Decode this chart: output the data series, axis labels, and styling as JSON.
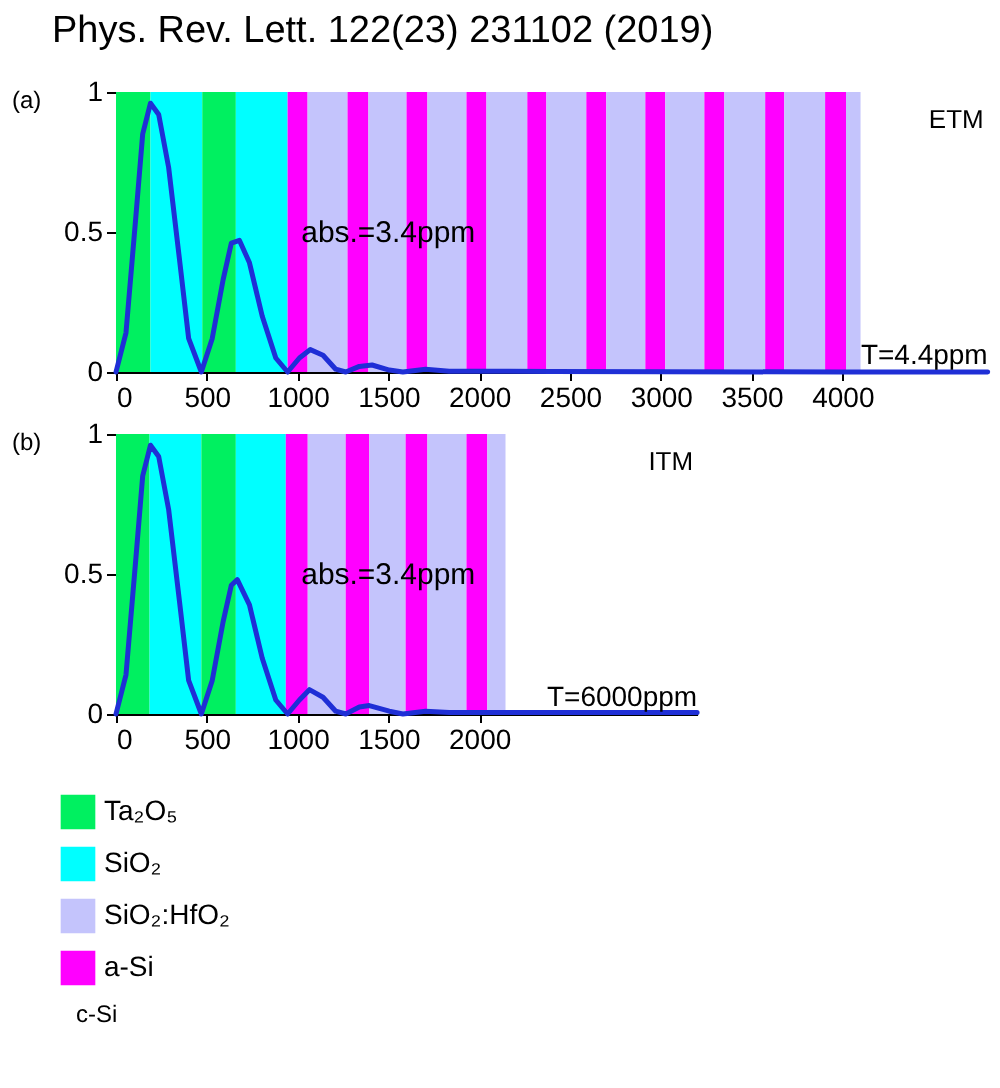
{
  "chart_data": [
    {
      "type": "line",
      "title": "Phys. Rev. Lett. 122(23) 231102 (2019)",
      "annotations": [
        "(a)",
        "ETM",
        "abs.=3.4ppm",
        "T=4.4ppm"
      ],
      "x": [
        0,
        55,
        110,
        147,
        190,
        235,
        290,
        350,
        400,
        470,
        530,
        590,
        635,
        680,
        735,
        805,
        880,
        945,
        1010,
        1070,
        1140,
        1210,
        1265,
        1340,
        1410,
        1505,
        1580,
        1705,
        1835,
        2000,
        2400,
        3000,
        4000,
        4800
      ],
      "series": [
        {
          "color": "#1f2fd6",
          "values": [
            0,
            0.14,
            0.56,
            0.85,
            0.96,
            0.92,
            0.73,
            0.4,
            0.12,
            0,
            0.12,
            0.33,
            0.46,
            0.47,
            0.39,
            0.2,
            0.05,
            0,
            0.05,
            0.08,
            0.06,
            0.01,
            0,
            0.02,
            0.025,
            0.007,
            0,
            0.01,
            0.003,
            0.003,
            0.002,
            0.001,
            0,
            0
          ]
        }
      ],
      "xlim": [
        0,
        4800
      ],
      "xticks": [
        0,
        500,
        1000,
        1500,
        2000,
        2500,
        3000,
        3500,
        4000
      ],
      "ylim": [
        0,
        1
      ],
      "yticks": [
        0,
        0.5,
        1
      ],
      "grid": false,
      "bands": [
        {
          "axis": "x",
          "from": 0,
          "to": 190,
          "color": "#00f060"
        },
        {
          "axis": "x",
          "from": 190,
          "to": 475,
          "color": "#00ffff"
        },
        {
          "axis": "x",
          "from": 475,
          "to": 660,
          "color": "#00f060"
        },
        {
          "axis": "x",
          "from": 660,
          "to": 945,
          "color": "#00ffff"
        },
        {
          "axis": "x",
          "from": 945,
          "to": 1055,
          "color": "#ff00ff"
        },
        {
          "axis": "x",
          "from": 1055,
          "to": 1275,
          "color": "#c4c4fc"
        },
        {
          "axis": "x",
          "from": 1275,
          "to": 1390,
          "color": "#ff00ff"
        },
        {
          "axis": "x",
          "from": 1390,
          "to": 1600,
          "color": "#c4c4fc"
        },
        {
          "axis": "x",
          "from": 1600,
          "to": 1715,
          "color": "#ff00ff"
        },
        {
          "axis": "x",
          "from": 1715,
          "to": 1930,
          "color": "#c4c4fc"
        },
        {
          "axis": "x",
          "from": 1930,
          "to": 2040,
          "color": "#ff00ff"
        },
        {
          "axis": "x",
          "from": 2040,
          "to": 2265,
          "color": "#c4c4fc"
        },
        {
          "axis": "x",
          "from": 2265,
          "to": 2370,
          "color": "#ff00ff"
        },
        {
          "axis": "x",
          "from": 2370,
          "to": 2590,
          "color": "#c4c4fc"
        },
        {
          "axis": "x",
          "from": 2590,
          "to": 2700,
          "color": "#ff00ff"
        },
        {
          "axis": "x",
          "from": 2700,
          "to": 2915,
          "color": "#c4c4fc"
        },
        {
          "axis": "x",
          "from": 2915,
          "to": 3025,
          "color": "#ff00ff"
        },
        {
          "axis": "x",
          "from": 3025,
          "to": 3240,
          "color": "#c4c4fc"
        },
        {
          "axis": "x",
          "from": 3240,
          "to": 3350,
          "color": "#ff00ff"
        },
        {
          "axis": "x",
          "from": 3350,
          "to": 3575,
          "color": "#c4c4fc"
        },
        {
          "axis": "x",
          "from": 3575,
          "to": 3680,
          "color": "#ff00ff"
        },
        {
          "axis": "x",
          "from": 3680,
          "to": 3905,
          "color": "#c4c4fc"
        },
        {
          "axis": "x",
          "from": 3905,
          "to": 4020,
          "color": "#ff00ff"
        },
        {
          "axis": "x",
          "from": 4020,
          "to": 4100,
          "color": "#c4c4fc"
        }
      ]
    },
    {
      "type": "line",
      "annotations": [
        "(b)",
        "ITM",
        "abs.=3.4ppm",
        "T=6000ppm",
        "c-Si"
      ],
      "x": [
        0,
        55,
        110,
        147,
        190,
        235,
        290,
        350,
        400,
        470,
        530,
        590,
        635,
        668,
        735,
        805,
        880,
        945,
        1010,
        1065,
        1140,
        1210,
        1265,
        1340,
        1395,
        1505,
        1580,
        1705,
        1835,
        2000,
        2400,
        2800,
        3200
      ],
      "series": [
        {
          "color": "#1f2fd6",
          "values": [
            0,
            0.14,
            0.56,
            0.85,
            0.96,
            0.92,
            0.73,
            0.4,
            0.12,
            0,
            0.12,
            0.33,
            0.46,
            0.48,
            0.39,
            0.2,
            0.05,
            0,
            0.05,
            0.087,
            0.06,
            0.01,
            0,
            0.025,
            0.03,
            0.01,
            0,
            0.01,
            0.005,
            0.005,
            0.005,
            0.005,
            0.005
          ]
        }
      ],
      "xlim": [
        0,
        3200
      ],
      "xticks": [
        0,
        500,
        1000,
        1500,
        2000
      ],
      "ylim": [
        0,
        1
      ],
      "yticks": [
        0,
        0.5,
        1
      ],
      "grid": false,
      "legend": "bottom",
      "bands": [
        {
          "axis": "x",
          "from": 0,
          "to": 185,
          "label": "Ta₂O₅",
          "color": "#00f060"
        },
        {
          "axis": "x",
          "from": 185,
          "to": 470,
          "label": "SiO₂",
          "color": "#00ffff"
        },
        {
          "axis": "x",
          "from": 470,
          "to": 660,
          "color": "#00f060"
        },
        {
          "axis": "x",
          "from": 660,
          "to": 935,
          "color": "#00ffff"
        },
        {
          "axis": "x",
          "from": 1055,
          "to": 1265,
          "label": "SiO₂:HfO₂",
          "color": "#c4c4fc"
        },
        {
          "axis": "x",
          "from": 935,
          "to": 1055,
          "label": "a-Si",
          "color": "#ff00ff"
        },
        {
          "axis": "x",
          "from": 1265,
          "to": 1395,
          "color": "#ff00ff"
        },
        {
          "axis": "x",
          "from": 1395,
          "to": 1595,
          "color": "#c4c4fc"
        },
        {
          "axis": "x",
          "from": 1595,
          "to": 1715,
          "color": "#ff00ff"
        },
        {
          "axis": "x",
          "from": 1715,
          "to": 1930,
          "color": "#c4c4fc"
        },
        {
          "axis": "x",
          "from": 1930,
          "to": 2045,
          "color": "#ff00ff"
        },
        {
          "axis": "x",
          "from": 2045,
          "to": 2145,
          "color": "#c4c4fc"
        }
      ]
    }
  ]
}
